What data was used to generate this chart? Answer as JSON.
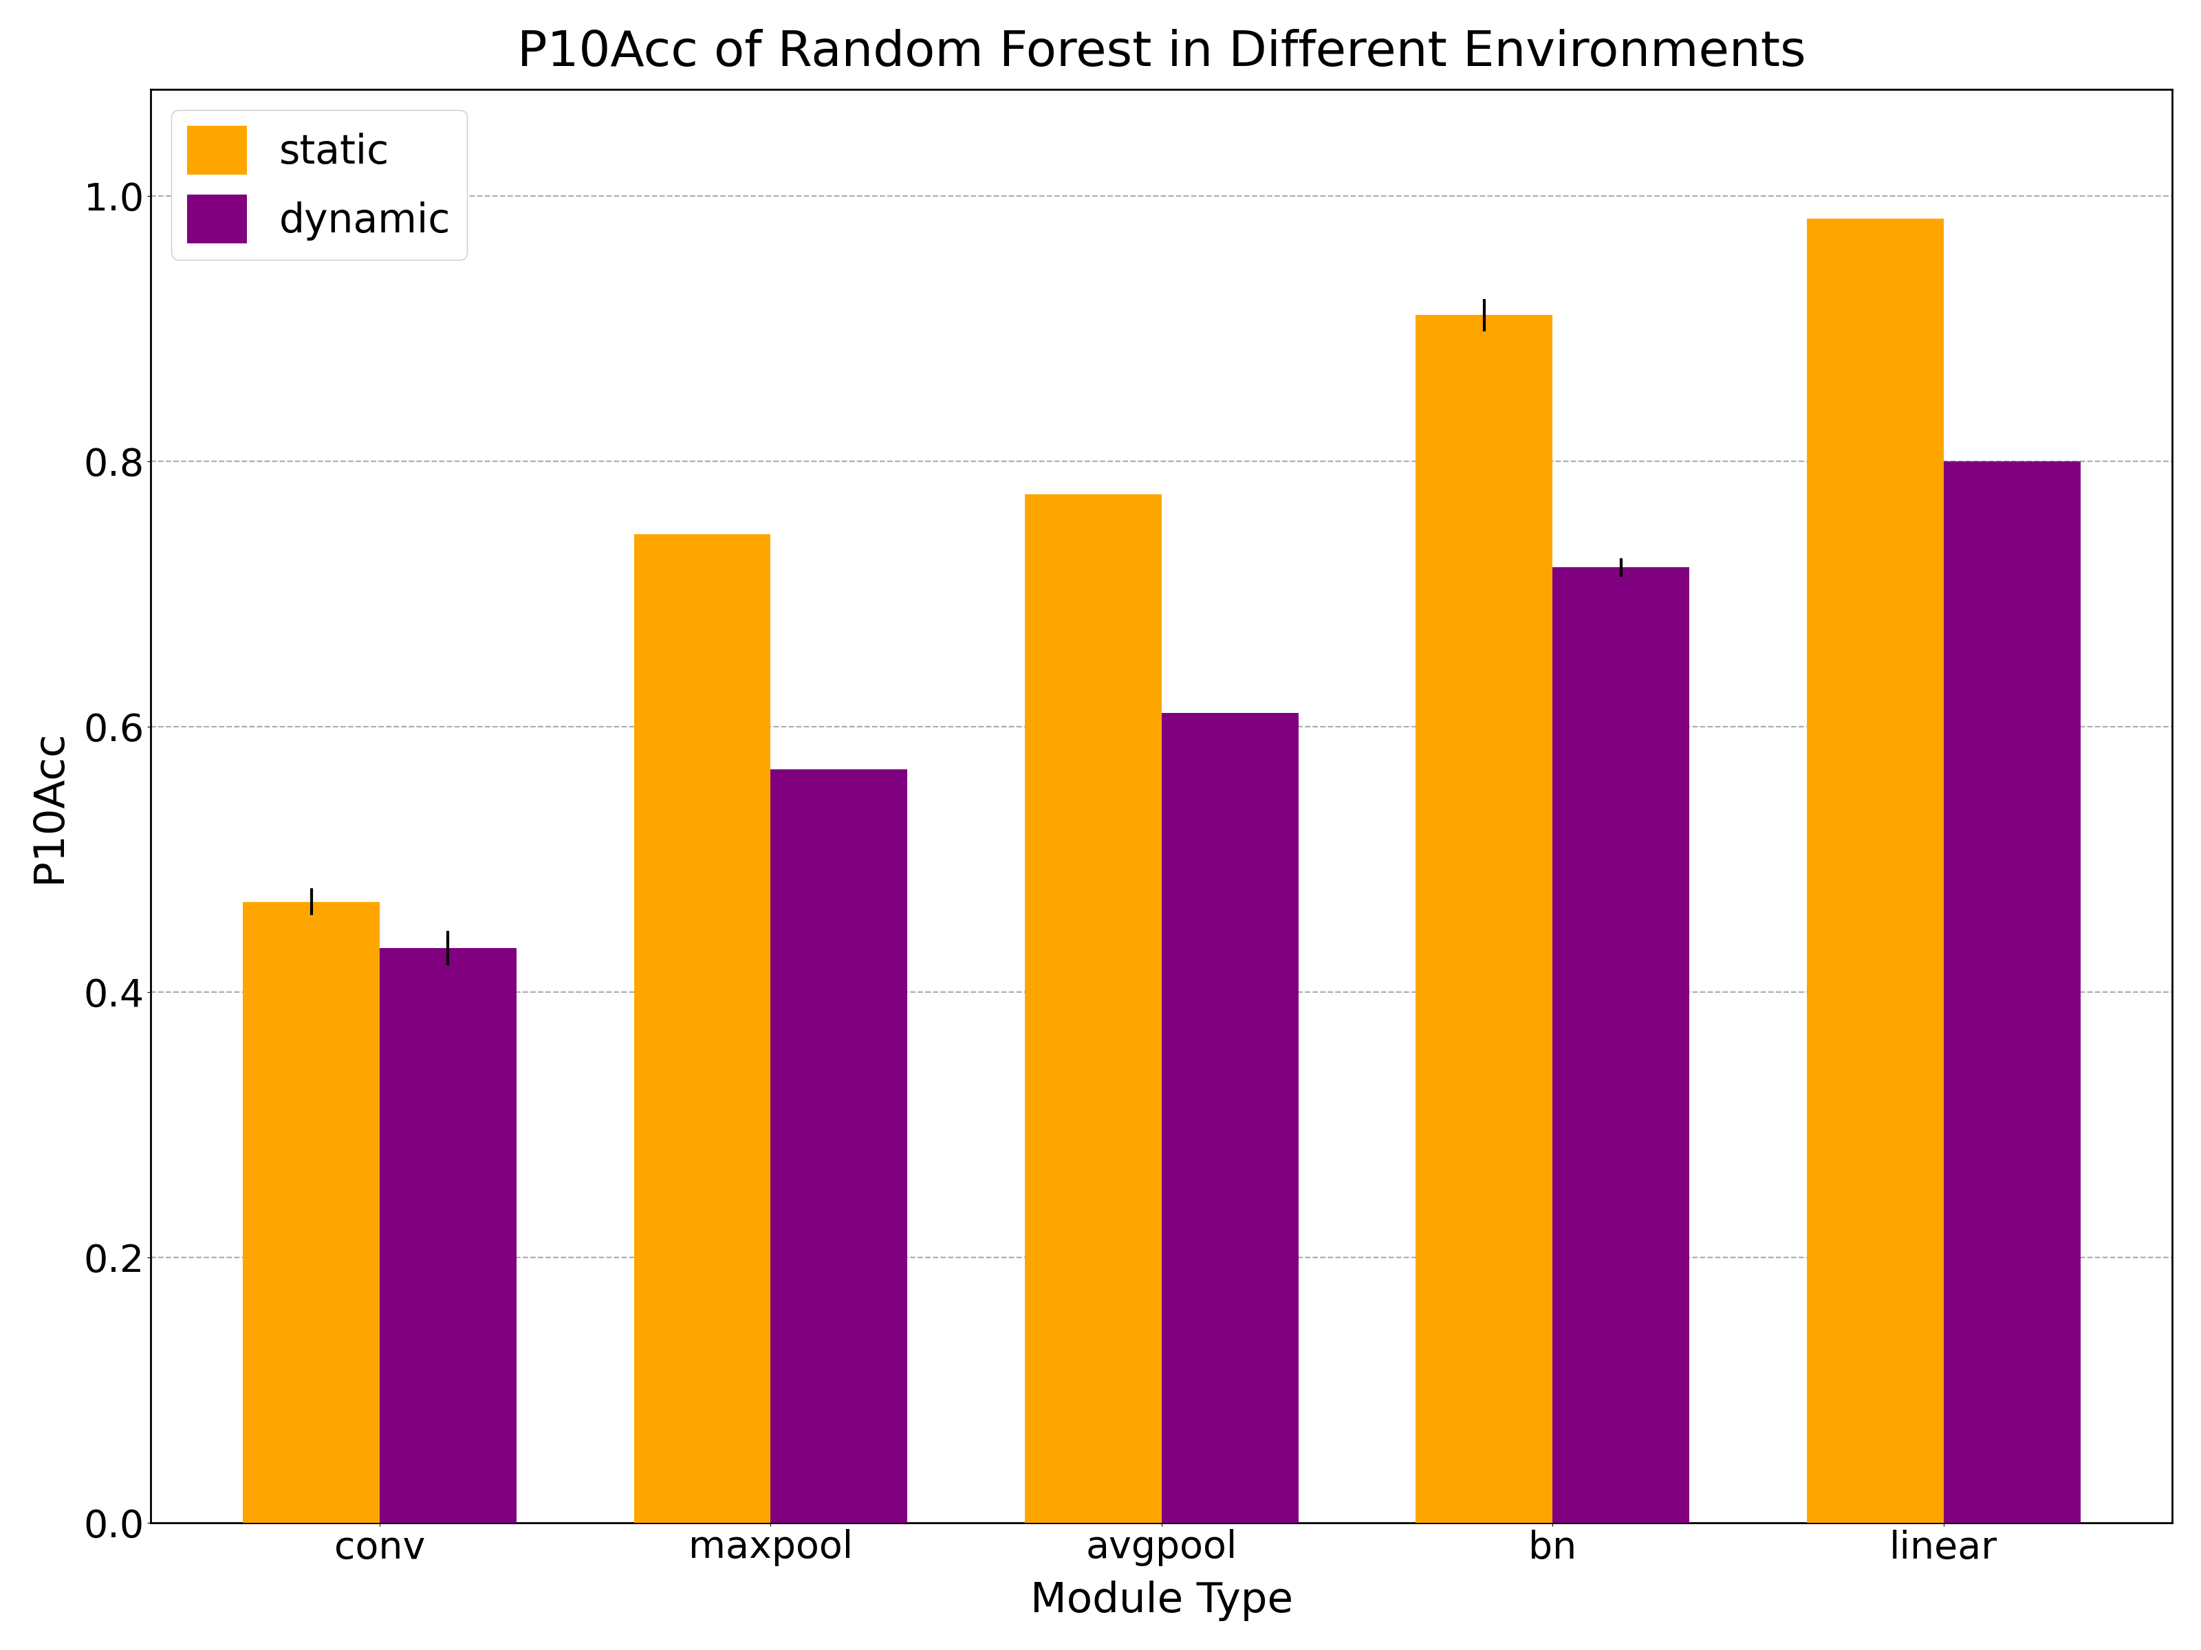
{
  "title": "P10Acc of Random Forest in Different Environments",
  "xlabel": "Module Type",
  "ylabel": "P10Acc",
  "categories": [
    "conv",
    "maxpool",
    "avgpool",
    "bn",
    "linear"
  ],
  "static_values": [
    0.468,
    0.745,
    0.775,
    0.91,
    0.983
  ],
  "dynamic_values": [
    0.433,
    0.568,
    0.61,
    0.72,
    0.8
  ],
  "static_errors": [
    0.01,
    0.0,
    0.0,
    0.012,
    0.0
  ],
  "dynamic_errors": [
    0.013,
    0.0,
    0.0,
    0.007,
    0.0
  ],
  "static_color": "#FFA500",
  "dynamic_color": "#800080",
  "bar_width": 0.35,
  "ylim": [
    0.0,
    1.08
  ],
  "yticks": [
    0.0,
    0.2,
    0.4,
    0.6,
    0.8,
    1.0
  ],
  "grid_color": "#aaaaaa",
  "legend_labels": [
    "static",
    "dynamic"
  ],
  "title_fontsize": 52,
  "label_fontsize": 44,
  "tick_fontsize": 40,
  "legend_fontsize": 42
}
